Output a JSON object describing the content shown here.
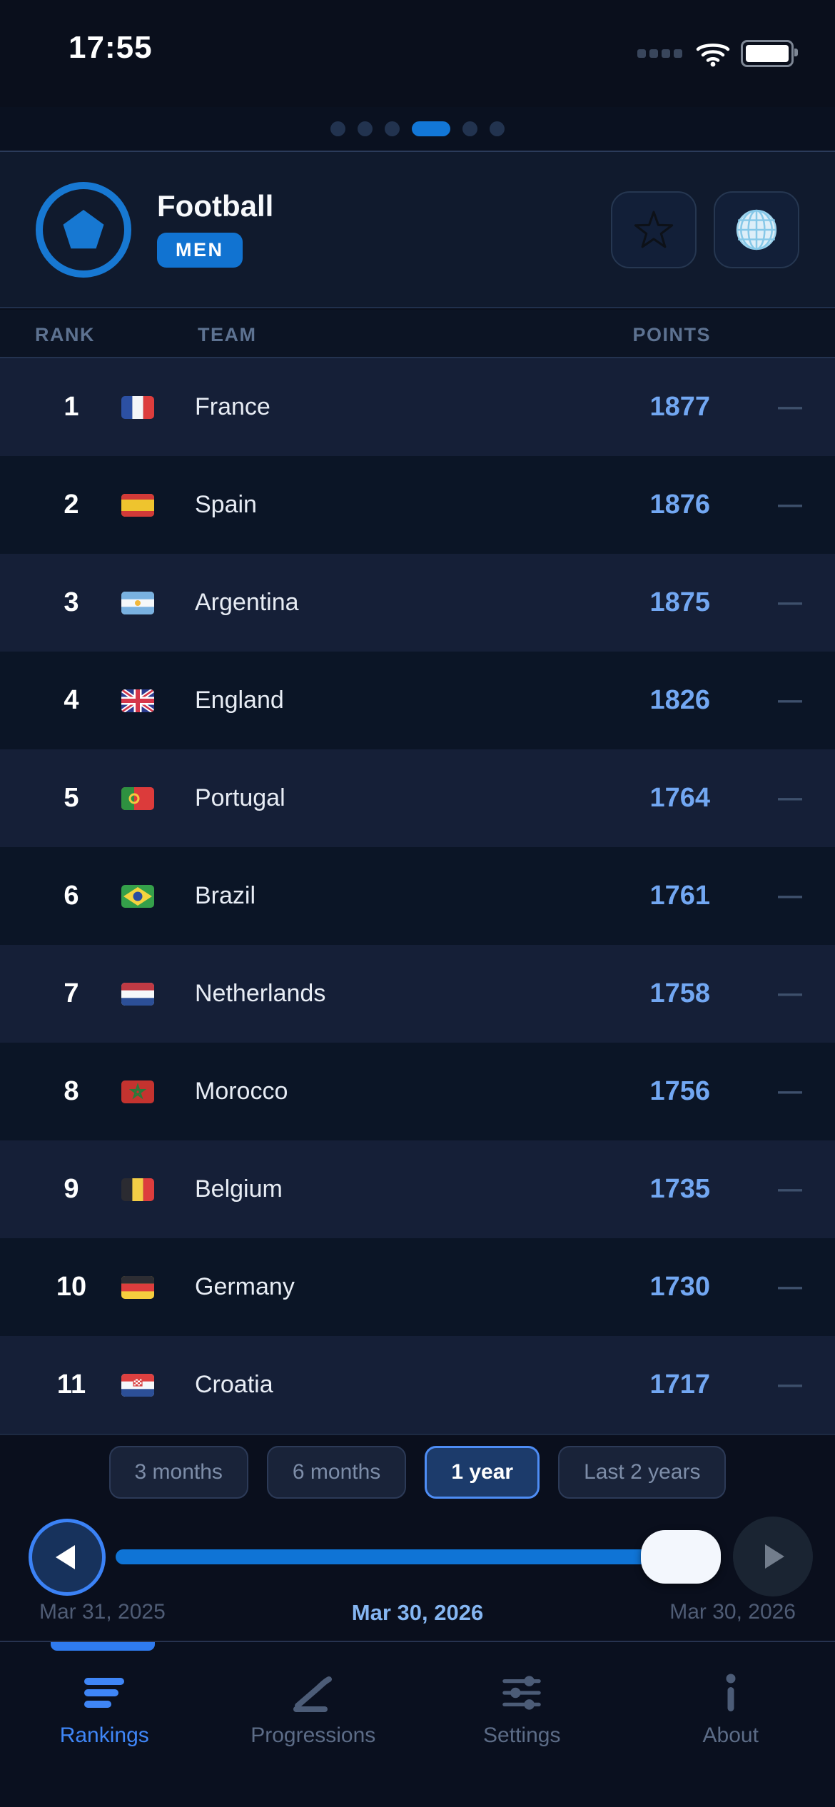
{
  "status_bar": {
    "time": "17:55",
    "icons": [
      "cellular-dots-icon",
      "wifi-icon",
      "battery-icon"
    ]
  },
  "page_indicator": {
    "dot_count": 6,
    "active_index": 3
  },
  "header": {
    "title": "Football",
    "category_badge": "MEN",
    "icon": "pentagon-crest-icon",
    "actions": [
      {
        "name": "favorite",
        "icon": "star-icon"
      },
      {
        "name": "region",
        "icon": "globe-icon"
      }
    ]
  },
  "ranking_table": {
    "columns": [
      "RANK",
      "TEAM",
      "POINTS"
    ],
    "rows": [
      {
        "rank": "1",
        "team": "France",
        "flag": "fr",
        "points": "1877",
        "trend": "—"
      },
      {
        "rank": "2",
        "team": "Spain",
        "flag": "es",
        "points": "1876",
        "trend": "—"
      },
      {
        "rank": "3",
        "team": "Argentina",
        "flag": "ar",
        "points": "1875",
        "trend": "—"
      },
      {
        "rank": "4",
        "team": "England",
        "flag": "gb",
        "points": "1826",
        "trend": "—"
      },
      {
        "rank": "5",
        "team": "Portugal",
        "flag": "pt",
        "points": "1764",
        "trend": "—"
      },
      {
        "rank": "6",
        "team": "Brazil",
        "flag": "br",
        "points": "1761",
        "trend": "—"
      },
      {
        "rank": "7",
        "team": "Netherlands",
        "flag": "nl",
        "points": "1758",
        "trend": "—"
      },
      {
        "rank": "8",
        "team": "Morocco",
        "flag": "ma",
        "points": "1756",
        "trend": "—"
      },
      {
        "rank": "9",
        "team": "Belgium",
        "flag": "be",
        "points": "1735",
        "trend": "—"
      },
      {
        "rank": "10",
        "team": "Germany",
        "flag": "de",
        "points": "1730",
        "trend": "—"
      },
      {
        "rank": "11",
        "team": "Croatia",
        "flag": "hr",
        "points": "1717",
        "trend": "—"
      }
    ]
  },
  "period_filters": {
    "options": [
      "3 months",
      "6 months",
      "1 year",
      "Last 2 years"
    ],
    "selected_index": 2
  },
  "timeline": {
    "start_date": "Mar 31, 2025",
    "current_date": "Mar 30, 2026",
    "end_date": "Mar 30, 2026",
    "progress_percent": 100,
    "controls": [
      "step-back-button",
      "step-forward-button"
    ]
  },
  "tab_bar": {
    "items": [
      {
        "label": "Rankings",
        "icon": "rankings-list-icon",
        "active": true
      },
      {
        "label": "Progressions",
        "icon": "progression-chart-icon",
        "active": false
      },
      {
        "label": "Settings",
        "icon": "sliders-icon",
        "active": false
      },
      {
        "label": "About",
        "icon": "info-icon",
        "active": false
      }
    ]
  },
  "colors": {
    "accent_blue": "#1173d1",
    "selected_border": "#4e8df5",
    "points_text": "#72a7f2",
    "active_tab": "#3f86f7",
    "row_alt_bg": "#151f37",
    "page_bg": "#0a0f1c"
  }
}
